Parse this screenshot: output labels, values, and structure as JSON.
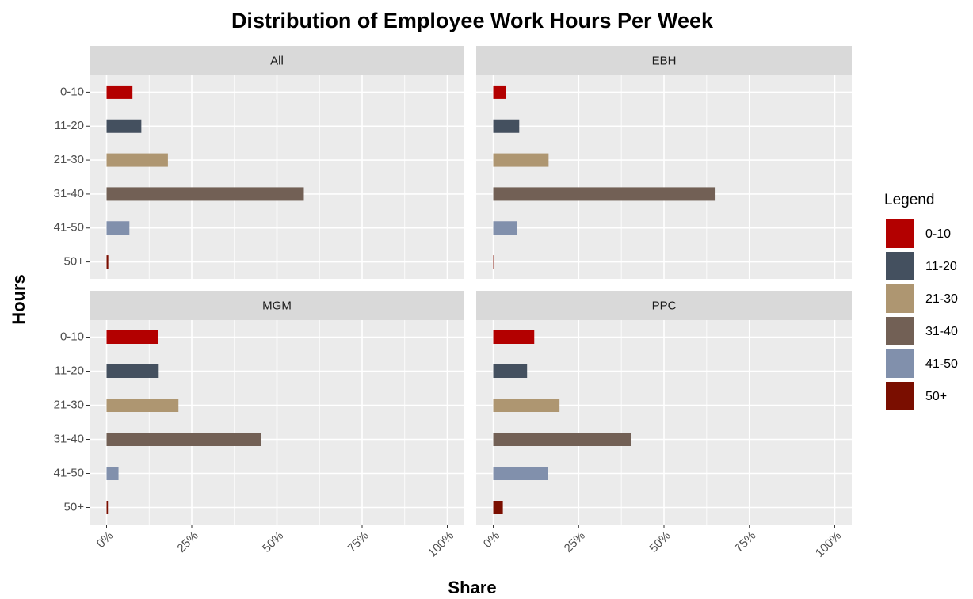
{
  "chart_data": {
    "type": "bar",
    "orientation": "horizontal",
    "title": "Distribution of Employee Work Hours Per Week",
    "xlabel": "Share",
    "ylabel": "Hours",
    "legend_title": "Legend",
    "legend": "right",
    "categories": [
      "0-10",
      "11-20",
      "21-30",
      "31-40",
      "41-50",
      "50+"
    ],
    "colors": [
      "#b30000",
      "#44505f",
      "#ae9671",
      "#726055",
      "#8190ac",
      "#7a0e00"
    ],
    "xlim": [
      -5,
      105
    ],
    "xticks": [
      {
        "value": 0,
        "label": "0%"
      },
      {
        "value": 25,
        "label": "25%"
      },
      {
        "value": 50,
        "label": "50%"
      },
      {
        "value": 75,
        "label": "75%"
      },
      {
        "value": 100,
        "label": "100%"
      }
    ],
    "grid": true,
    "facets": [
      {
        "title": "All",
        "values": [
          7.6,
          10.2,
          18,
          57.9,
          6.7,
          0.5
        ]
      },
      {
        "title": "EBH",
        "values": [
          3.7,
          7.6,
          16.2,
          65.1,
          6.9,
          0.3
        ]
      },
      {
        "title": "MGM",
        "values": [
          15,
          15.3,
          21.1,
          45.4,
          3.5,
          0.4
        ]
      },
      {
        "title": "PPC",
        "values": [
          12,
          9.9,
          19.4,
          40.4,
          15.9,
          2.8
        ]
      }
    ]
  }
}
